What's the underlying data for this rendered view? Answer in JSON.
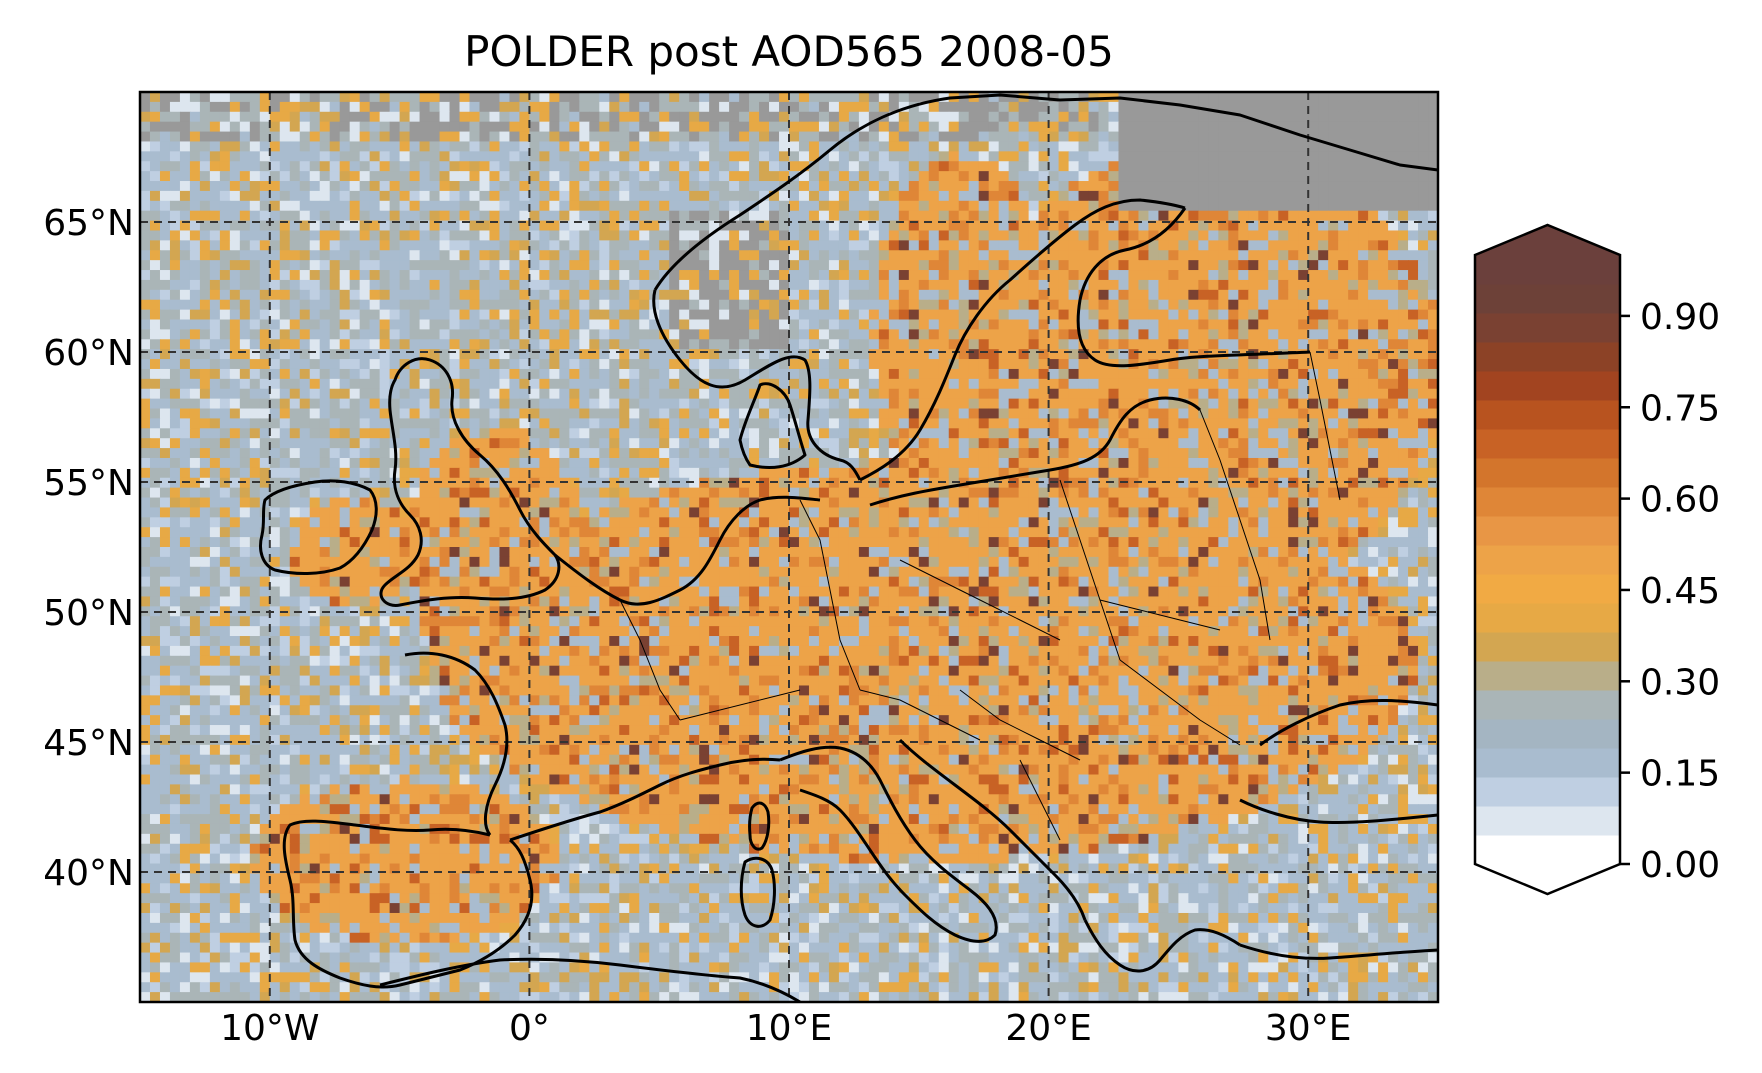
{
  "map": {
    "title": "POLDER post AOD565 2008-05",
    "lon_range": [
      -15,
      35
    ],
    "lat_range": [
      35,
      70
    ],
    "x_ticks": [
      {
        "value": -10,
        "label": "10°W"
      },
      {
        "value": 0,
        "label": "0°"
      },
      {
        "value": 10,
        "label": "10°E"
      },
      {
        "value": 20,
        "label": "20°E"
      },
      {
        "value": 30,
        "label": "30°E"
      }
    ],
    "y_ticks": [
      {
        "value": 65,
        "label": "65°N"
      },
      {
        "value": 60,
        "label": "60°N"
      },
      {
        "value": 55,
        "label": "55°N"
      },
      {
        "value": 50,
        "label": "50°N"
      },
      {
        "value": 45,
        "label": "45°N"
      },
      {
        "value": 40,
        "label": "40°N"
      }
    ],
    "gridlines": "dashed",
    "missing_color": "#999999"
  },
  "colorbar": {
    "range": [
      0,
      1
    ],
    "extend": "both",
    "ticks": [
      {
        "value": 0.0,
        "label": "0.00"
      },
      {
        "value": 0.15,
        "label": "0.15"
      },
      {
        "value": 0.3,
        "label": "0.30"
      },
      {
        "value": 0.45,
        "label": "0.45"
      },
      {
        "value": 0.6,
        "label": "0.60"
      },
      {
        "value": 0.75,
        "label": "0.75"
      },
      {
        "value": 0.9,
        "label": "0.90"
      }
    ],
    "colors": [
      "#ffffff",
      "#dde6ef",
      "#bfcfe2",
      "#a9bccf",
      "#a4b5c2",
      "#aab5b7",
      "#b9ae89",
      "#d3a651",
      "#e7a945",
      "#f1aa44",
      "#eda348",
      "#e89645",
      "#df8637",
      "#d3752c",
      "#c86225",
      "#b8531f",
      "#a24420",
      "#8c4226",
      "#7a4132",
      "#6d4138",
      "#6b403c"
    ],
    "under_color": "#ffffff",
    "over_color": "#6b403c"
  }
}
